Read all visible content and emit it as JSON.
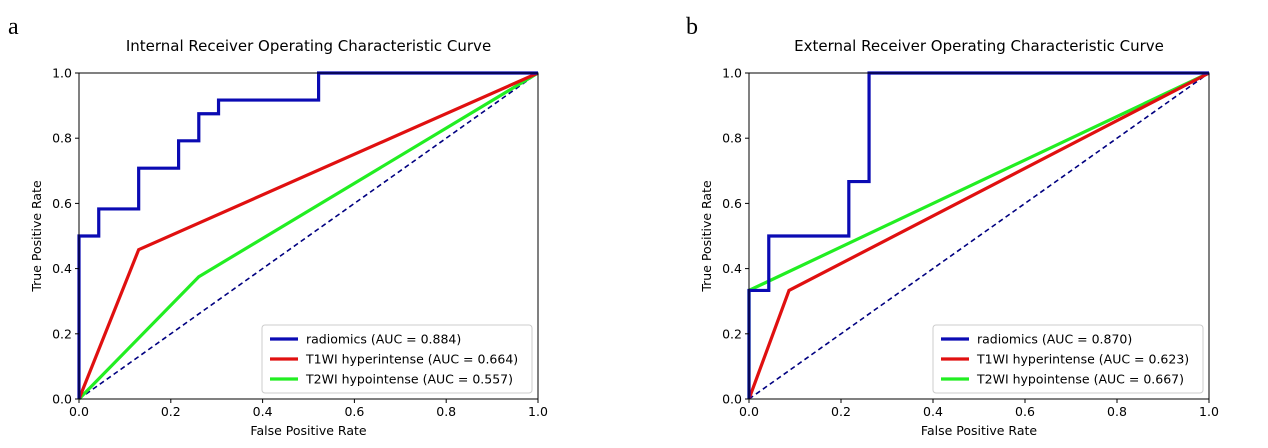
{
  "chart_data": [
    {
      "panel_label": "a",
      "type": "line",
      "title": "Internal Receiver Operating Characteristic Curve",
      "xlabel": "False Positive Rate",
      "ylabel": "True Positive Rate",
      "xlim": [
        0.0,
        1.0
      ],
      "ylim": [
        0.0,
        1.0
      ],
      "xticks": [
        "0.0",
        "0.2",
        "0.4",
        "0.6",
        "0.8",
        "1.0"
      ],
      "yticks": [
        "0.0",
        "0.2",
        "0.4",
        "0.6",
        "0.8",
        "1.0"
      ],
      "grid": false,
      "legend_position": "lower-right",
      "diagonal_reference": true,
      "series": [
        {
          "name": "radiomics",
          "legend_label": "radiomics (AUC = 0.884)",
          "auc": 0.884,
          "color": "#0b0bb3",
          "step": true,
          "points": [
            [
              0,
              0
            ],
            [
              0,
              0.5
            ],
            [
              0.043,
              0.5
            ],
            [
              0.043,
              0.583
            ],
            [
              0.13,
              0.583
            ],
            [
              0.13,
              0.708
            ],
            [
              0.217,
              0.708
            ],
            [
              0.217,
              0.792
            ],
            [
              0.261,
              0.792
            ],
            [
              0.261,
              0.875
            ],
            [
              0.304,
              0.875
            ],
            [
              0.304,
              0.917
            ],
            [
              0.522,
              0.917
            ],
            [
              0.522,
              1.0
            ],
            [
              1.0,
              1.0
            ]
          ]
        },
        {
          "name": "T1WI hyperintense",
          "legend_label": "T1WI hyperintense (AUC = 0.664)",
          "auc": 0.664,
          "color": "#e01010",
          "step": false,
          "points": [
            [
              0,
              0
            ],
            [
              0.13,
              0.458
            ],
            [
              1.0,
              1.0
            ]
          ]
        },
        {
          "name": "T2WI hypointense",
          "legend_label": "T2WI hypointense (AUC = 0.557)",
          "auc": 0.557,
          "color": "#22ee22",
          "step": false,
          "points": [
            [
              0,
              0
            ],
            [
              0.261,
              0.375
            ],
            [
              1.0,
              1.0
            ]
          ]
        }
      ]
    },
    {
      "panel_label": "b",
      "type": "line",
      "title": "External Receiver Operating Characteristic Curve",
      "xlabel": "False Positive Rate",
      "ylabel": "True Positive Rate",
      "xlim": [
        0.0,
        1.0
      ],
      "ylim": [
        0.0,
        1.0
      ],
      "xticks": [
        "0.0",
        "0.2",
        "0.4",
        "0.6",
        "0.8",
        "1.0"
      ],
      "yticks": [
        "0.0",
        "0.2",
        "0.4",
        "0.6",
        "0.8",
        "1.0"
      ],
      "grid": false,
      "legend_position": "lower-right",
      "diagonal_reference": true,
      "series": [
        {
          "name": "radiomics",
          "legend_label": "radiomics (AUC = 0.870)",
          "auc": 0.87,
          "color": "#0b0bb3",
          "step": true,
          "points": [
            [
              0,
              0
            ],
            [
              0,
              0.333
            ],
            [
              0.043,
              0.333
            ],
            [
              0.043,
              0.5
            ],
            [
              0.217,
              0.5
            ],
            [
              0.217,
              0.667
            ],
            [
              0.261,
              0.667
            ],
            [
              0.261,
              1.0
            ],
            [
              1.0,
              1.0
            ]
          ]
        },
        {
          "name": "T1WI hyperintense",
          "legend_label": "T1WI hyperintense (AUC = 0.623)",
          "auc": 0.623,
          "color": "#e01010",
          "step": false,
          "points": [
            [
              0,
              0
            ],
            [
              0.087,
              0.333
            ],
            [
              1.0,
              1.0
            ]
          ]
        },
        {
          "name": "T2WI hypointense",
          "legend_label": "T2WI hypointense (AUC = 0.667)",
          "auc": 0.667,
          "color": "#22ee22",
          "step": false,
          "points": [
            [
              0,
              0
            ],
            [
              0,
              0.333
            ],
            [
              1.0,
              1.0
            ]
          ]
        }
      ]
    }
  ]
}
